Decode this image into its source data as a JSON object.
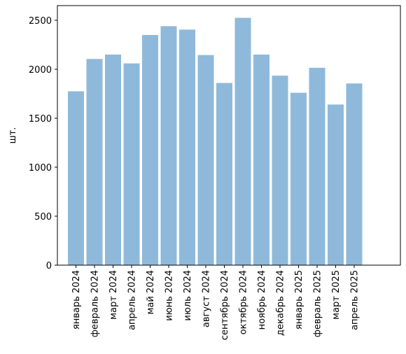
{
  "chart_data": {
    "type": "bar",
    "title": "",
    "xlabel": "",
    "ylabel": "шт.",
    "categories": [
      "январь 2024",
      "февраль 2024",
      "март 2024",
      "апрель 2024",
      "май 2024",
      "июнь 2024",
      "июль 2024",
      "август 2024",
      "сентябрь 2024",
      "октябрь 2024",
      "ноябрь 2024",
      "декабрь 2024",
      "январь 2025",
      "февраль 2025",
      "март 2025",
      "апрель 2025"
    ],
    "values": [
      1775,
      2105,
      2150,
      2060,
      2350,
      2440,
      2405,
      2145,
      1860,
      2525,
      2150,
      1935,
      1760,
      2015,
      1640,
      1855
    ],
    "ylim": [
      0,
      2650
    ],
    "yticks": [
      0,
      500,
      1000,
      1500,
      2000,
      2500
    ],
    "grid": false,
    "legend": "none",
    "colors": {
      "bar": "#8fb9da",
      "axis": "#000000",
      "background": "#ffffff"
    }
  }
}
